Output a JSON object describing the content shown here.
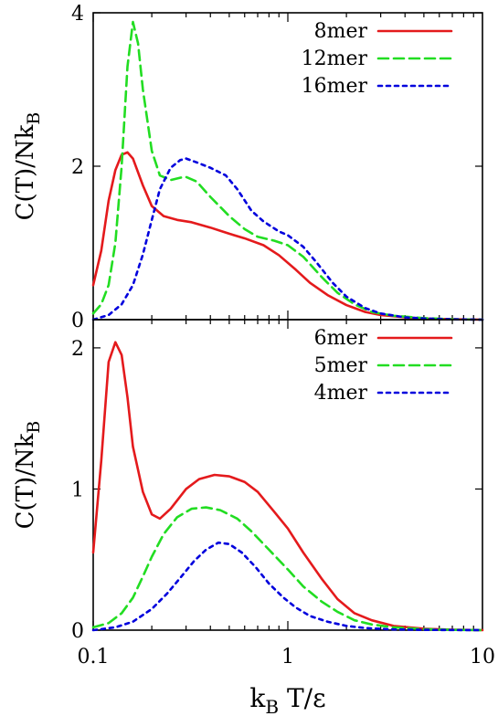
{
  "chart_data": [
    {
      "type": "line",
      "panel": "top",
      "title": "",
      "xlabel": "",
      "ylabel": "C(T)/Nk_B",
      "xscale": "log",
      "xlim": [
        0.1,
        10
      ],
      "ylim": [
        0,
        4
      ],
      "yticks": [
        {
          "value": 0,
          "label": "0"
        },
        {
          "value": 2,
          "label": "2"
        },
        {
          "value": 4,
          "label": "4"
        }
      ],
      "xticks": [],
      "legend_position": "top-right",
      "series": [
        {
          "name": "8mer",
          "color": "#e41a1c",
          "dash": "solid",
          "points": [
            [
              0.1,
              0.45
            ],
            [
              0.11,
              0.9
            ],
            [
              0.12,
              1.55
            ],
            [
              0.13,
              1.95
            ],
            [
              0.14,
              2.15
            ],
            [
              0.15,
              2.18
            ],
            [
              0.16,
              2.1
            ],
            [
              0.18,
              1.75
            ],
            [
              0.2,
              1.48
            ],
            [
              0.23,
              1.35
            ],
            [
              0.27,
              1.3
            ],
            [
              0.32,
              1.27
            ],
            [
              0.4,
              1.2
            ],
            [
              0.5,
              1.12
            ],
            [
              0.6,
              1.06
            ],
            [
              0.75,
              0.97
            ],
            [
              0.9,
              0.84
            ],
            [
              1.1,
              0.65
            ],
            [
              1.3,
              0.48
            ],
            [
              1.6,
              0.32
            ],
            [
              2.0,
              0.19
            ],
            [
              2.5,
              0.1
            ],
            [
              3,
              0.06
            ],
            [
              4,
              0.03
            ],
            [
              5,
              0.015
            ],
            [
              7,
              0.005
            ],
            [
              10,
              0.0
            ]
          ]
        },
        {
          "name": "12mer",
          "color": "#22dd22",
          "dash": "dashed",
          "points": [
            [
              0.1,
              0.08
            ],
            [
              0.11,
              0.2
            ],
            [
              0.12,
              0.45
            ],
            [
              0.13,
              1.0
            ],
            [
              0.14,
              2.0
            ],
            [
              0.15,
              3.3
            ],
            [
              0.16,
              3.88
            ],
            [
              0.17,
              3.6
            ],
            [
              0.18,
              3.0
            ],
            [
              0.2,
              2.2
            ],
            [
              0.22,
              1.88
            ],
            [
              0.25,
              1.82
            ],
            [
              0.28,
              1.85
            ],
            [
              0.3,
              1.86
            ],
            [
              0.34,
              1.8
            ],
            [
              0.4,
              1.6
            ],
            [
              0.5,
              1.35
            ],
            [
              0.6,
              1.18
            ],
            [
              0.7,
              1.08
            ],
            [
              0.85,
              1.03
            ],
            [
              1.0,
              0.97
            ],
            [
              1.2,
              0.82
            ],
            [
              1.5,
              0.55
            ],
            [
              1.8,
              0.35
            ],
            [
              2.2,
              0.2
            ],
            [
              2.7,
              0.1
            ],
            [
              3.5,
              0.05
            ],
            [
              5,
              0.02
            ],
            [
              7,
              0.005
            ],
            [
              10,
              0.0
            ]
          ]
        },
        {
          "name": "16mer",
          "color": "#0000dd",
          "dash": "dotted",
          "points": [
            [
              0.1,
              0.0
            ],
            [
              0.12,
              0.06
            ],
            [
              0.14,
              0.2
            ],
            [
              0.16,
              0.45
            ],
            [
              0.18,
              0.85
            ],
            [
              0.2,
              1.3
            ],
            [
              0.22,
              1.7
            ],
            [
              0.25,
              1.98
            ],
            [
              0.28,
              2.08
            ],
            [
              0.3,
              2.1
            ],
            [
              0.34,
              2.05
            ],
            [
              0.4,
              1.98
            ],
            [
              0.48,
              1.88
            ],
            [
              0.55,
              1.7
            ],
            [
              0.65,
              1.42
            ],
            [
              0.75,
              1.28
            ],
            [
              0.9,
              1.15
            ],
            [
              1.0,
              1.1
            ],
            [
              1.2,
              0.95
            ],
            [
              1.4,
              0.75
            ],
            [
              1.7,
              0.48
            ],
            [
              2.0,
              0.3
            ],
            [
              2.5,
              0.15
            ],
            [
              3,
              0.08
            ],
            [
              4,
              0.03
            ],
            [
              5,
              0.015
            ],
            [
              7,
              0.005
            ],
            [
              10,
              0.0
            ]
          ]
        }
      ]
    },
    {
      "type": "line",
      "panel": "bottom",
      "title": "",
      "xlabel": "k_B T/ε",
      "ylabel": "C(T)/Nk_B",
      "xscale": "log",
      "xlim": [
        0.1,
        10
      ],
      "ylim": [
        0,
        2.2
      ],
      "yticks": [
        {
          "value": 0,
          "label": "0"
        },
        {
          "value": 1,
          "label": "1"
        },
        {
          "value": 2,
          "label": "2"
        }
      ],
      "xticks": [
        {
          "value": 0.1,
          "label": "0.1"
        },
        {
          "value": 1,
          "label": "1"
        },
        {
          "value": 10,
          "label": "10"
        }
      ],
      "legend_position": "top-right",
      "series": [
        {
          "name": "6mer",
          "color": "#e41a1c",
          "dash": "solid",
          "points": [
            [
              0.1,
              0.55
            ],
            [
              0.11,
              1.2
            ],
            [
              0.12,
              1.9
            ],
            [
              0.13,
              2.04
            ],
            [
              0.14,
              1.95
            ],
            [
              0.15,
              1.65
            ],
            [
              0.16,
              1.3
            ],
            [
              0.18,
              0.98
            ],
            [
              0.2,
              0.82
            ],
            [
              0.22,
              0.79
            ],
            [
              0.25,
              0.86
            ],
            [
              0.3,
              1.0
            ],
            [
              0.35,
              1.07
            ],
            [
              0.42,
              1.1
            ],
            [
              0.5,
              1.09
            ],
            [
              0.6,
              1.05
            ],
            [
              0.7,
              0.98
            ],
            [
              0.85,
              0.84
            ],
            [
              1.0,
              0.72
            ],
            [
              1.2,
              0.55
            ],
            [
              1.5,
              0.36
            ],
            [
              1.8,
              0.22
            ],
            [
              2.2,
              0.12
            ],
            [
              2.7,
              0.07
            ],
            [
              3.5,
              0.03
            ],
            [
              5,
              0.01
            ],
            [
              7,
              0.003
            ],
            [
              10,
              0.0
            ]
          ]
        },
        {
          "name": "5mer",
          "color": "#22dd22",
          "dash": "dashed",
          "points": [
            [
              0.1,
              0.02
            ],
            [
              0.12,
              0.05
            ],
            [
              0.14,
              0.12
            ],
            [
              0.16,
              0.23
            ],
            [
              0.18,
              0.38
            ],
            [
              0.2,
              0.52
            ],
            [
              0.23,
              0.68
            ],
            [
              0.27,
              0.8
            ],
            [
              0.32,
              0.86
            ],
            [
              0.38,
              0.87
            ],
            [
              0.45,
              0.85
            ],
            [
              0.55,
              0.79
            ],
            [
              0.65,
              0.7
            ],
            [
              0.8,
              0.57
            ],
            [
              1.0,
              0.43
            ],
            [
              1.2,
              0.31
            ],
            [
              1.5,
              0.2
            ],
            [
              1.8,
              0.13
            ],
            [
              2.2,
              0.07
            ],
            [
              2.7,
              0.04
            ],
            [
              3.5,
              0.02
            ],
            [
              5,
              0.007
            ],
            [
              7,
              0.002
            ],
            [
              10,
              0.0
            ]
          ]
        },
        {
          "name": "4mer",
          "color": "#0000dd",
          "dash": "dotted",
          "points": [
            [
              0.1,
              0.0
            ],
            [
              0.13,
              0.02
            ],
            [
              0.16,
              0.06
            ],
            [
              0.2,
              0.15
            ],
            [
              0.24,
              0.26
            ],
            [
              0.28,
              0.37
            ],
            [
              0.33,
              0.49
            ],
            [
              0.38,
              0.57
            ],
            [
              0.44,
              0.62
            ],
            [
              0.5,
              0.61
            ],
            [
              0.58,
              0.55
            ],
            [
              0.68,
              0.45
            ],
            [
              0.8,
              0.33
            ],
            [
              0.95,
              0.23
            ],
            [
              1.1,
              0.16
            ],
            [
              1.3,
              0.1
            ],
            [
              1.6,
              0.06
            ],
            [
              2.0,
              0.03
            ],
            [
              2.5,
              0.015
            ],
            [
              3.5,
              0.005
            ],
            [
              5,
              0.002
            ],
            [
              10,
              0.0
            ]
          ]
        }
      ]
    }
  ]
}
